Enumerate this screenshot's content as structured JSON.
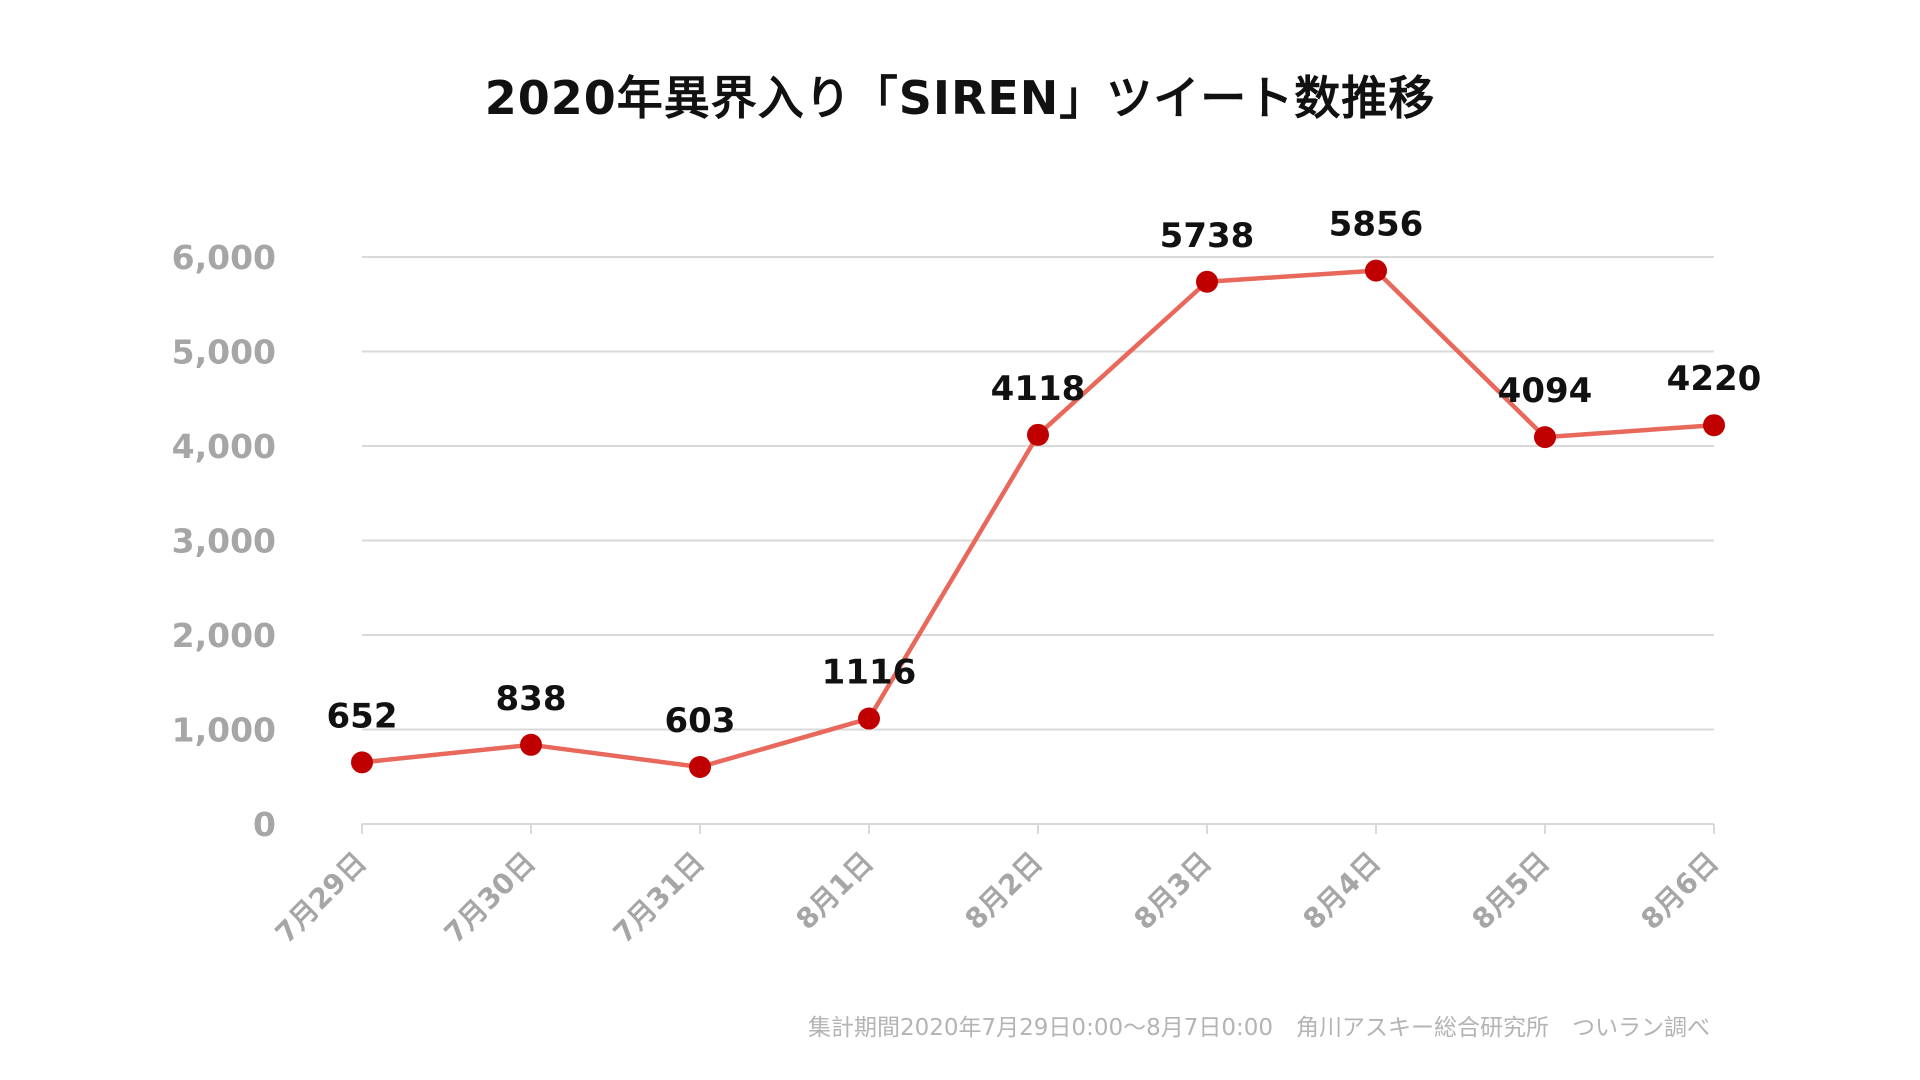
{
  "chart_data": {
    "type": "line",
    "title": "2020年異界入り「SIREN」ツイート数推移",
    "xlabel": "",
    "ylabel": "",
    "categories": [
      "7月29日",
      "7月30日",
      "7月31日",
      "8月1日",
      "8月2日",
      "8月3日",
      "8月4日",
      "8月5日",
      "8月6日"
    ],
    "series": [
      {
        "values": [
          652,
          838,
          603,
          1116,
          4118,
          5738,
          5856,
          4094,
          4220
        ],
        "data_labels": [
          "652",
          "838",
          "603",
          "1116",
          "4118",
          "5738",
          "5856",
          "4094",
          "4220"
        ],
        "line_color": "#e8685c",
        "marker_color": "#c00000"
      }
    ],
    "ylim": [
      0,
      6000
    ],
    "yticks": [
      0,
      1000,
      2000,
      3000,
      4000,
      5000,
      6000
    ],
    "ytick_labels": [
      "0",
      "1,000",
      "2,000",
      "3,000",
      "4,000",
      "5,000",
      "6,000"
    ],
    "grid": true,
    "legend": "none",
    "gridline_color": "#d9d9d9",
    "tick_label_color": "#a6a6a6"
  },
  "footnote": "集計期間2020年7月29日0:00〜8月7日0:00　角川アスキー総合研究所　ついラン調べ"
}
